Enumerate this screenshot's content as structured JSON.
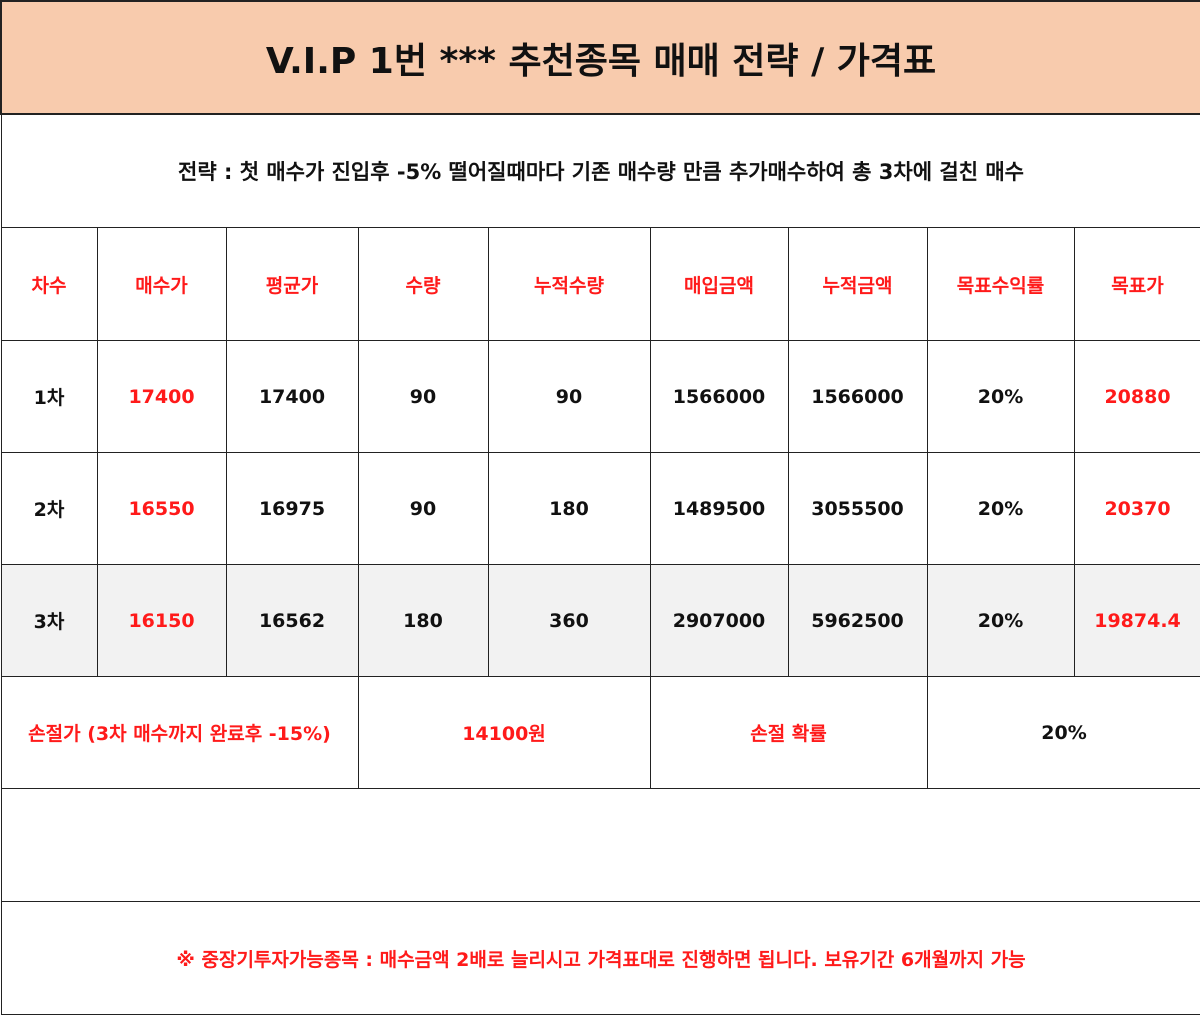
{
  "title": "V.I.P 1번 *** 추천종목  매매 전략 / 가격표",
  "strategy": "전략 : 첫 매수가 진입후 -5% 떨어질때마다 기존 매수량 만큼 추가매수하여 총 3차에 걸친 매수",
  "headers": [
    "차수",
    "매수가",
    "평균가",
    "수량",
    "누적수량",
    "매입금액",
    "누적금액",
    "목표수익률",
    "목표가"
  ],
  "rows": [
    [
      "1차",
      "17400",
      "17400",
      "90",
      "90",
      "1566000",
      "1566000",
      "20%",
      "20880"
    ],
    [
      "2차",
      "16550",
      "16975",
      "90",
      "180",
      "1489500",
      "3055500",
      "20%",
      "20370"
    ],
    [
      "3차",
      "16150",
      "16562",
      "180",
      "360",
      "2907000",
      "5962500",
      "20%",
      "19874.4"
    ]
  ],
  "stoploss": {
    "label": "손절가 (3차 매수까지 완료후 -15%)",
    "price": "14100원",
    "prob_label": "손절 확률",
    "prob_value": "20%"
  },
  "footer": "※ 중장기투자가능종목 : 매수금액 2배로 늘리시고 가격표대로 진행하면 됩니다. 보유기간 6개월까지 가능",
  "colors": {
    "title_bg": "#f8cbad",
    "accent": "#ff1a1a",
    "row3_bg": "#f2f2f2"
  }
}
